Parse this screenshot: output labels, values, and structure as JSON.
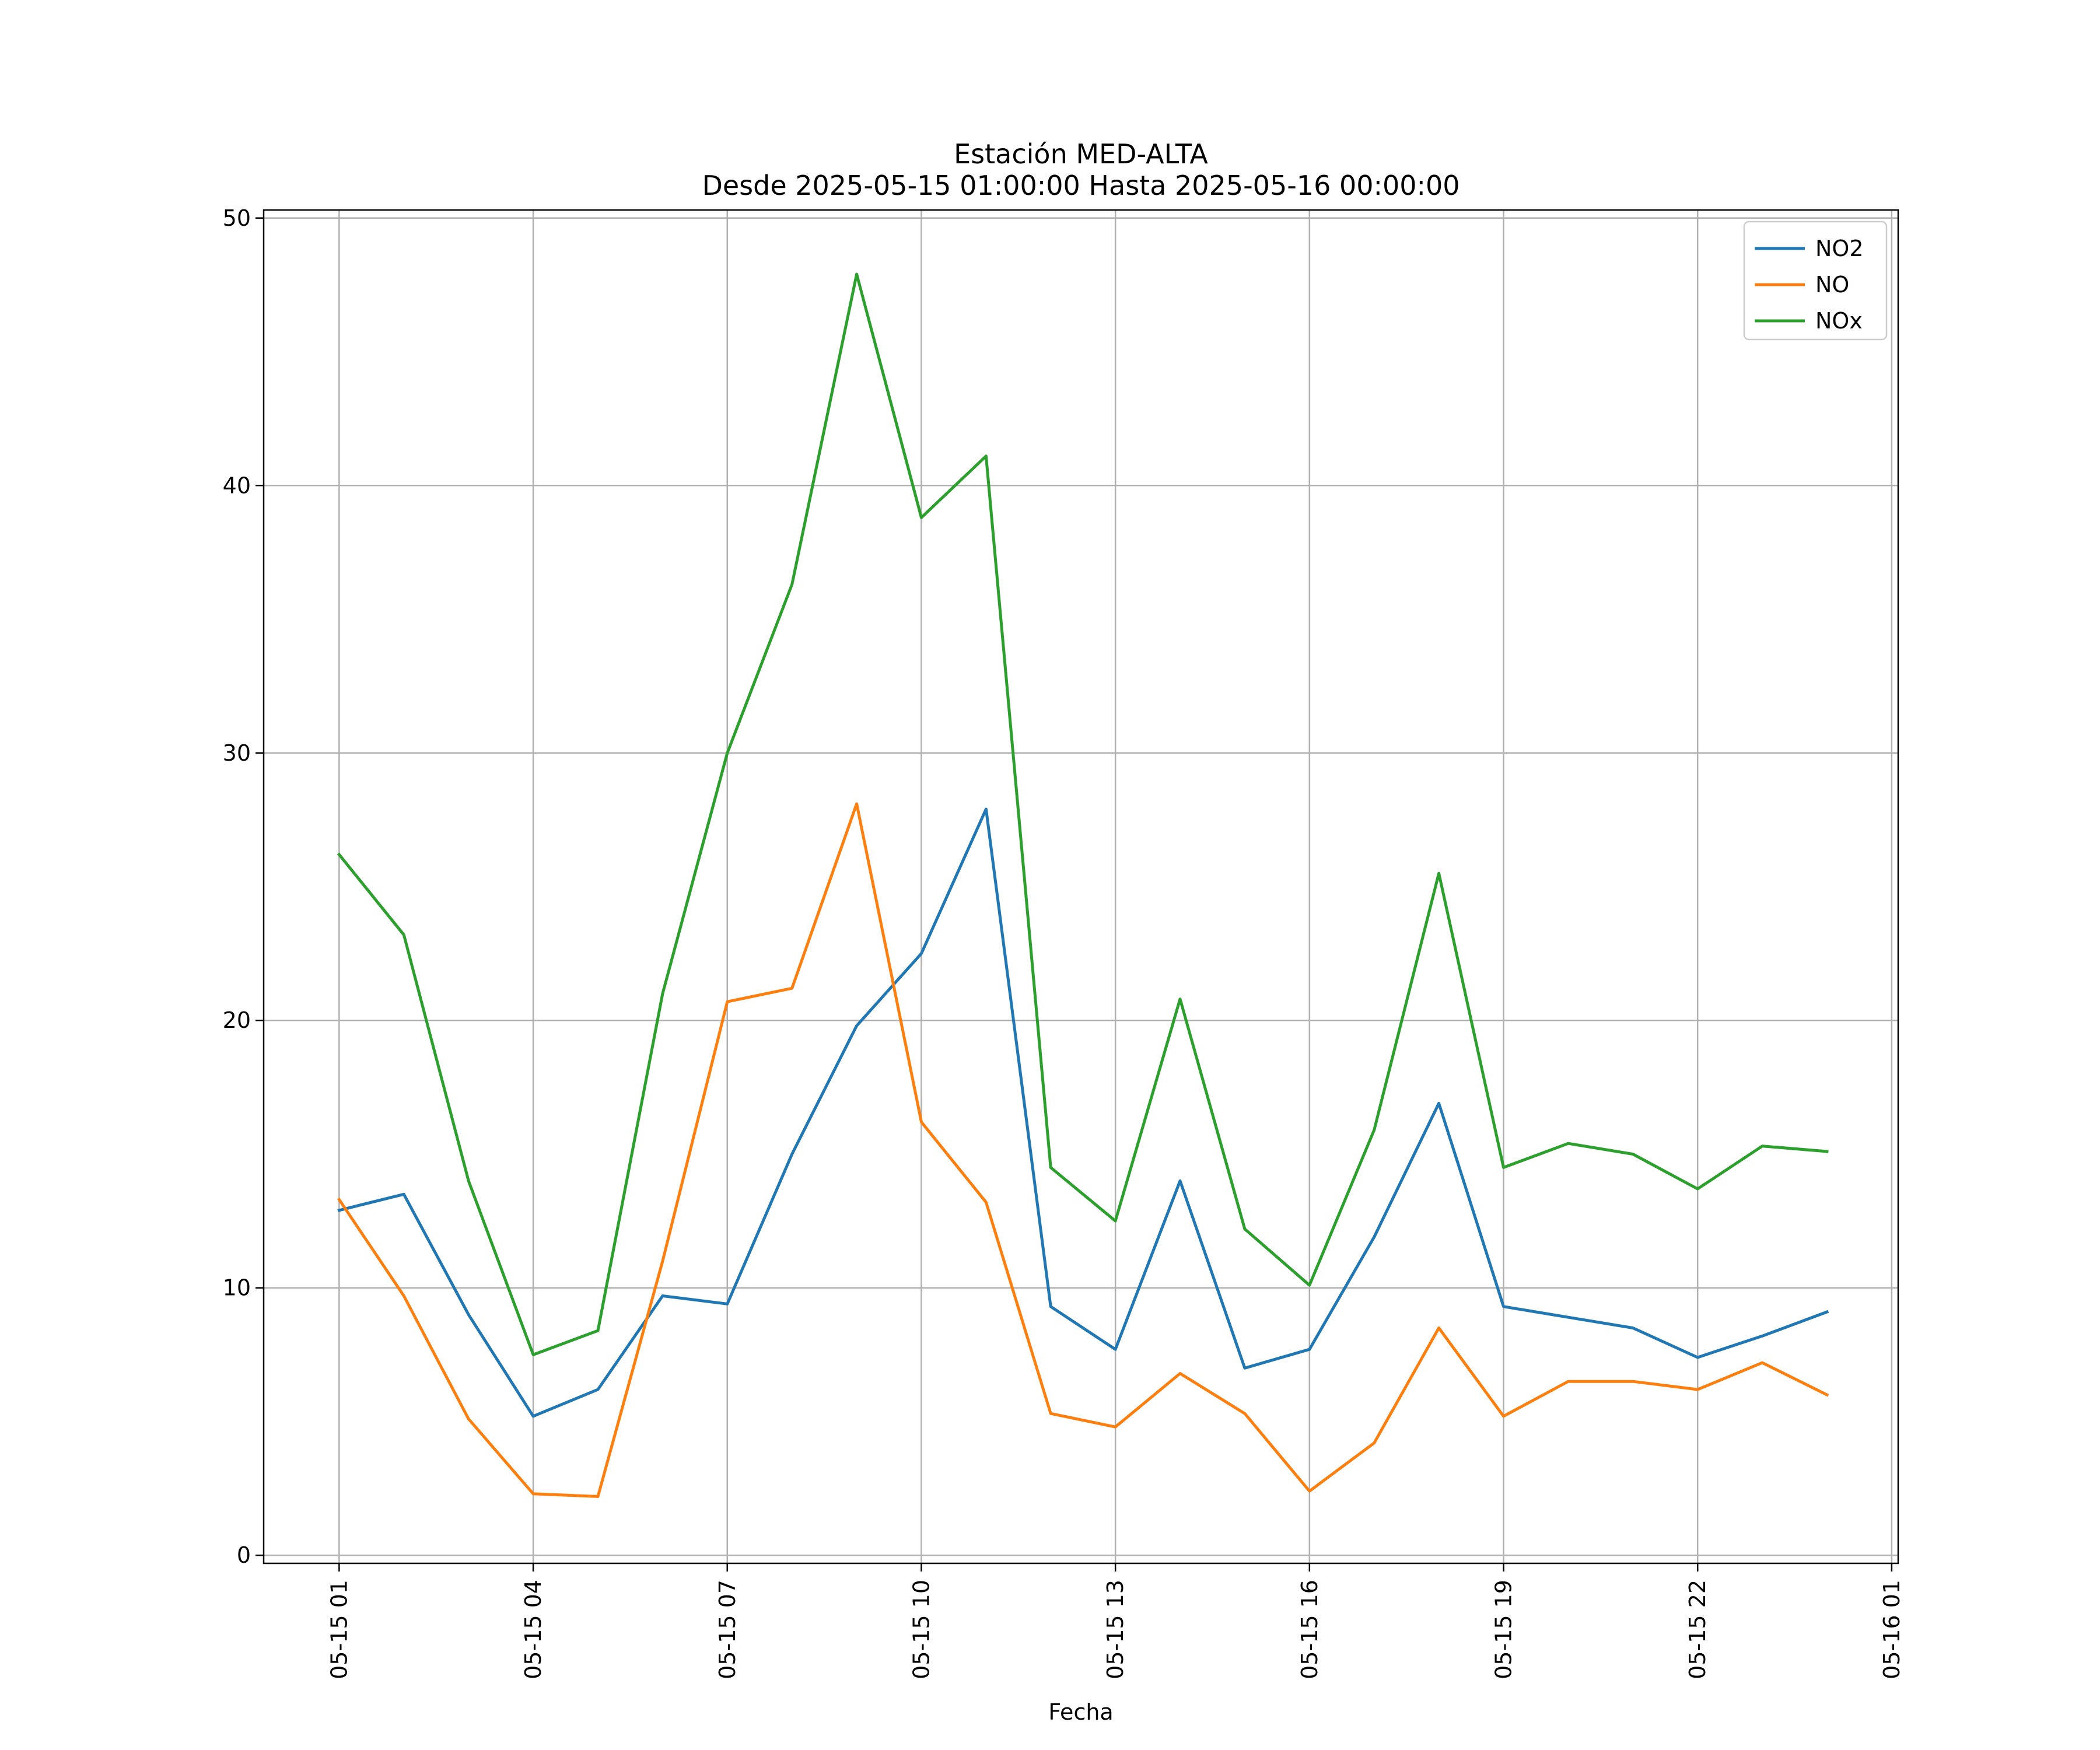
{
  "chart_data": {
    "type": "line",
    "title": "Estación MED-ALTA",
    "subtitle": "Desde 2025-05-15 01:00:00 Hasta 2025-05-16 00:00:00",
    "xlabel": "Fecha",
    "ylabel": "",
    "x": [
      "2025-05-15 01:00",
      "2025-05-15 02:00",
      "2025-05-15 03:00",
      "2025-05-15 04:00",
      "2025-05-15 05:00",
      "2025-05-15 06:00",
      "2025-05-15 07:00",
      "2025-05-15 08:00",
      "2025-05-15 09:00",
      "2025-05-15 10:00",
      "2025-05-15 11:00",
      "2025-05-15 12:00",
      "2025-05-15 13:00",
      "2025-05-15 14:00",
      "2025-05-15 15:00",
      "2025-05-15 16:00",
      "2025-05-15 17:00",
      "2025-05-15 18:00",
      "2025-05-15 19:00",
      "2025-05-15 20:00",
      "2025-05-15 21:00",
      "2025-05-15 22:00",
      "2025-05-15 23:00",
      "2025-05-16 00:00"
    ],
    "xlim": [
      "2025-05-14 23:50",
      "2025-05-16 01:06"
    ],
    "xticks": [
      {
        "value": "2025-05-15 01:00",
        "label": "05-15 01"
      },
      {
        "value": "2025-05-15 04:00",
        "label": "05-15 04"
      },
      {
        "value": "2025-05-15 07:00",
        "label": "05-15 07"
      },
      {
        "value": "2025-05-15 10:00",
        "label": "05-15 10"
      },
      {
        "value": "2025-05-15 13:00",
        "label": "05-15 13"
      },
      {
        "value": "2025-05-15 16:00",
        "label": "05-15 16"
      },
      {
        "value": "2025-05-15 19:00",
        "label": "05-15 19"
      },
      {
        "value": "2025-05-15 22:00",
        "label": "05-15 22"
      },
      {
        "value": "2025-05-16 01:00",
        "label": "05-16 01"
      }
    ],
    "ylim": [
      -0.3,
      50.3
    ],
    "yticks": [
      0,
      10,
      20,
      30,
      40,
      50
    ],
    "grid": true,
    "legend_position": "top-right",
    "series": [
      {
        "name": "NO2",
        "color": "#1f77b4",
        "values": [
          12.9,
          13.5,
          9.0,
          5.2,
          6.2,
          9.7,
          9.4,
          15.0,
          19.8,
          22.5,
          27.9,
          9.3,
          7.7,
          14.0,
          7.0,
          7.7,
          11.9,
          16.9,
          9.3,
          8.9,
          8.5,
          7.4,
          8.2,
          9.1
        ]
      },
      {
        "name": "NO",
        "color": "#ff7f0e",
        "values": [
          13.3,
          9.7,
          5.1,
          2.3,
          2.2,
          11.0,
          20.7,
          21.2,
          28.1,
          16.2,
          13.2,
          5.3,
          4.8,
          6.8,
          5.3,
          2.4,
          4.2,
          8.5,
          5.2,
          6.5,
          6.5,
          6.2,
          7.2,
          6.0
        ]
      },
      {
        "name": "NOx",
        "color": "#2ca02c",
        "values": [
          26.2,
          23.2,
          14.0,
          7.5,
          8.4,
          21.0,
          30.0,
          36.3,
          47.9,
          38.8,
          41.1,
          14.5,
          12.5,
          20.8,
          12.2,
          10.1,
          15.9,
          25.5,
          14.5,
          15.4,
          15.0,
          13.7,
          15.3,
          15.1
        ]
      }
    ]
  }
}
